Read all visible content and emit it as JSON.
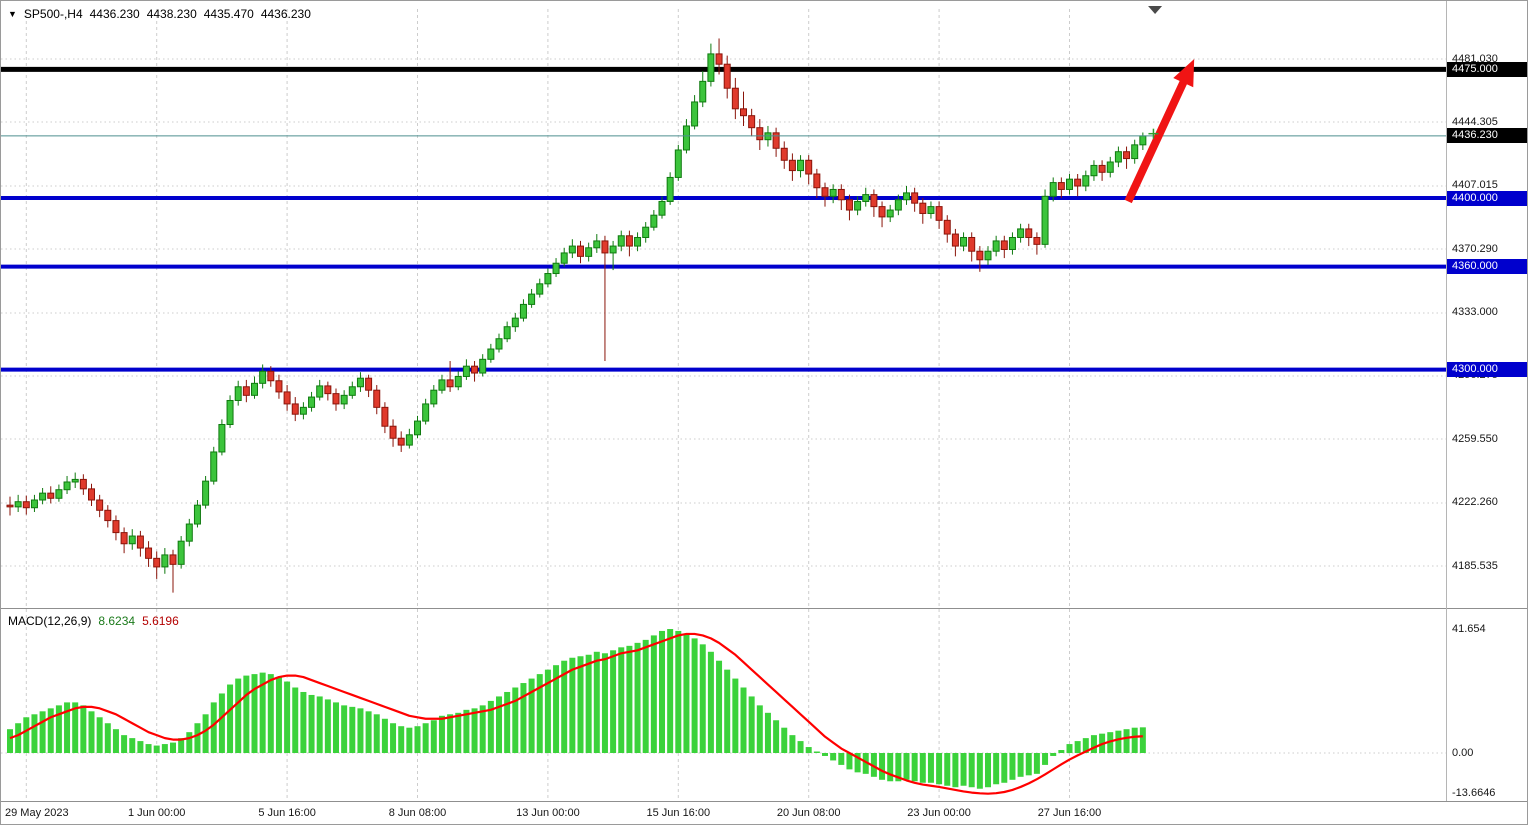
{
  "header": {
    "expand_icon": "▼",
    "symbol_period": "SP500-,H4",
    "open": "4436.230",
    "high": "4438.230",
    "low": "4435.470",
    "close": "4436.230"
  },
  "colors": {
    "bull_fill": "#3cc43c",
    "bull_stroke": "#0f7a0f",
    "bear_fill": "#e03a2c",
    "bear_stroke": "#8a140a",
    "hist_fill": "#3bd23b",
    "signal_line": "#ff0000",
    "grid": "#cdcdcd",
    "blue_level": "#0000cd",
    "black_level": "#000000",
    "current_price_line": "#4d8f8f",
    "arrow": "#f01414",
    "marker_green": "#2f9e2f"
  },
  "chart_data": {
    "type": "candlestick+macd",
    "main": {
      "y_axis_ticks": [
        {
          "v": 4481.03,
          "label": "4481.030"
        },
        {
          "v": 4444.305,
          "label": "4444.305"
        },
        {
          "v": 4407.015,
          "label": "4407.015"
        },
        {
          "v": 4370.29,
          "label": "4370.290"
        },
        {
          "v": 4333.0,
          "label": "4333.000"
        },
        {
          "v": 4296.275,
          "label": "4296.275"
        },
        {
          "v": 4259.55,
          "label": "4259.550"
        },
        {
          "v": 4222.26,
          "label": "4222.260"
        },
        {
          "v": 4185.535,
          "label": "4185.535"
        }
      ],
      "hlines": [
        {
          "price": 4475.0,
          "label": "4475.000",
          "color": "#000000",
          "badge_bg": "#000000",
          "width": 5
        },
        {
          "price": 4400.0,
          "label": "4400.000",
          "color": "#0000cd",
          "badge_bg": "#0000cd",
          "width": 4
        },
        {
          "price": 4360.0,
          "label": "4360.000",
          "color": "#0000cd",
          "badge_bg": "#0000cd",
          "width": 4
        },
        {
          "price": 4300.0,
          "label": "4300.000",
          "color": "#0000cd",
          "badge_bg": "#0000cd",
          "width": 4
        }
      ],
      "current_price": {
        "value": 4436.23,
        "label": "4436.230",
        "badge_bg": "#000000"
      },
      "arrow": {
        "from_index": 137.2,
        "from_price": 4398,
        "to_index": 145.3,
        "to_price": 4481,
        "color": "#f01414"
      },
      "shift_marker_index": 140.5,
      "price_cross_marker": {
        "index": 140.3,
        "price": 4437.5
      },
      "candles": [
        [
          4221,
          4226,
          4215,
          4220
        ],
        [
          4220,
          4227,
          4217,
          4223
        ],
        [
          4223,
          4226.5,
          4215.5,
          4219.5
        ],
        [
          4219.5,
          4227,
          4217,
          4224
        ],
        [
          4224,
          4231,
          4221.5,
          4228
        ],
        [
          4228,
          4232,
          4222,
          4225
        ],
        [
          4225,
          4233,
          4223,
          4230
        ],
        [
          4230,
          4238,
          4227.5,
          4234.5
        ],
        [
          4234.5,
          4240,
          4231,
          4236
        ],
        [
          4236,
          4239,
          4227,
          4230.5
        ],
        [
          4230.5,
          4233.5,
          4220.5,
          4224
        ],
        [
          4224,
          4227,
          4214,
          4218
        ],
        [
          4218,
          4221,
          4208,
          4212
        ],
        [
          4212,
          4215,
          4200.5,
          4205
        ],
        [
          4205,
          4208,
          4193,
          4198.5
        ],
        [
          4198.5,
          4207,
          4195,
          4203
        ],
        [
          4203,
          4206,
          4191,
          4196
        ],
        [
          4196,
          4200,
          4185,
          4190
        ],
        [
          4190,
          4194,
          4178,
          4185
        ],
        [
          4185,
          4196,
          4181,
          4192
        ],
        [
          4192,
          4195,
          4170,
          4186.5
        ],
        [
          4186.5,
          4203,
          4184,
          4200
        ],
        [
          4200,
          4213,
          4197,
          4210
        ],
        [
          4210,
          4224,
          4208,
          4221
        ],
        [
          4221,
          4238,
          4219,
          4235
        ],
        [
          4235,
          4255,
          4233,
          4252
        ],
        [
          4252,
          4271,
          4250,
          4268
        ],
        [
          4268,
          4285,
          4266,
          4282
        ],
        [
          4282,
          4293.5,
          4279,
          4290
        ],
        [
          4290,
          4294,
          4281,
          4285
        ],
        [
          4285,
          4296,
          4283,
          4292
        ],
        [
          4292,
          4303,
          4289,
          4299
        ],
        [
          4299,
          4302,
          4290,
          4293.5
        ],
        [
          4293.5,
          4297,
          4283,
          4287
        ],
        [
          4287,
          4291,
          4276,
          4280
        ],
        [
          4280,
          4284,
          4270,
          4274
        ],
        [
          4274,
          4281,
          4271,
          4278
        ],
        [
          4278,
          4287,
          4275.5,
          4284
        ],
        [
          4284,
          4294,
          4282,
          4290.5
        ],
        [
          4290.5,
          4293,
          4282,
          4286
        ],
        [
          4286,
          4289,
          4276,
          4280
        ],
        [
          4280,
          4288,
          4277,
          4285
        ],
        [
          4285,
          4293,
          4283,
          4290
        ],
        [
          4290,
          4298.5,
          4287,
          4295
        ],
        [
          4295,
          4297,
          4284,
          4288
        ],
        [
          4288,
          4291,
          4274,
          4278
        ],
        [
          4278,
          4281,
          4263,
          4267
        ],
        [
          4267,
          4271,
          4255,
          4260
        ],
        [
          4260,
          4264,
          4252,
          4256
        ],
        [
          4256,
          4265.5,
          4254,
          4262
        ],
        [
          4262,
          4273,
          4260,
          4270
        ],
        [
          4270,
          4283,
          4268,
          4280
        ],
        [
          4280,
          4291,
          4278,
          4288
        ],
        [
          4288,
          4297,
          4286,
          4294
        ],
        [
          4294,
          4305,
          4287,
          4290
        ],
        [
          4290,
          4299,
          4288,
          4296
        ],
        [
          4296,
          4306,
          4294,
          4302
        ],
        [
          4302,
          4305,
          4293,
          4298
        ],
        [
          4298,
          4309,
          4296,
          4306
        ],
        [
          4306,
          4315,
          4304,
          4312
        ],
        [
          4312,
          4321,
          4310,
          4318
        ],
        [
          4318,
          4328,
          4316,
          4325
        ],
        [
          4325,
          4333,
          4322,
          4330
        ],
        [
          4330,
          4341,
          4328,
          4338
        ],
        [
          4338,
          4347,
          4336,
          4344
        ],
        [
          4344,
          4353,
          4342,
          4350
        ],
        [
          4350,
          4359,
          4348,
          4356
        ],
        [
          4356,
          4365,
          4354,
          4362
        ],
        [
          4362,
          4371,
          4360,
          4368
        ],
        [
          4368,
          4376,
          4365,
          4372
        ],
        [
          4372,
          4375,
          4362,
          4366
        ],
        [
          4366,
          4374,
          4363,
          4371
        ],
        [
          4371,
          4379,
          4368,
          4375
        ],
        [
          4375,
          4378,
          4305,
          4368
        ],
        [
          4368,
          4375,
          4358,
          4372
        ],
        [
          4372,
          4381,
          4369,
          4378
        ],
        [
          4378,
          4381,
          4366,
          4372
        ],
        [
          4372,
          4380,
          4369,
          4377
        ],
        [
          4377,
          4386,
          4374,
          4383
        ],
        [
          4383,
          4393,
          4381,
          4390
        ],
        [
          4390,
          4401,
          4388,
          4398
        ],
        [
          4398,
          4415,
          4396,
          4412
        ],
        [
          4412,
          4431,
          4410,
          4428
        ],
        [
          4428,
          4446,
          4426,
          4442
        ],
        [
          4442,
          4460,
          4440,
          4456
        ],
        [
          4456,
          4474,
          4453,
          4468
        ],
        [
          4468,
          4490,
          4465,
          4484
        ],
        [
          4484,
          4493,
          4472,
          4478
        ],
        [
          4478,
          4483,
          4458,
          4464
        ],
        [
          4464,
          4470,
          4446,
          4452
        ],
        [
          4452,
          4462,
          4442,
          4448
        ],
        [
          4448,
          4452,
          4436,
          4441
        ],
        [
          4441,
          4446,
          4428,
          4434
        ],
        [
          4434,
          4442,
          4430,
          4438
        ],
        [
          4438,
          4441,
          4424,
          4429
        ],
        [
          4429,
          4433,
          4417,
          4422
        ],
        [
          4422,
          4426,
          4410,
          4416
        ],
        [
          4416,
          4425,
          4412,
          4422
        ],
        [
          4422,
          4425,
          4408,
          4414
        ],
        [
          4414,
          4417,
          4400,
          4406
        ],
        [
          4406,
          4409,
          4395,
          4401
        ],
        [
          4401,
          4408,
          4397,
          4405
        ],
        [
          4405,
          4408,
          4393,
          4399
        ],
        [
          4399,
          4402,
          4387,
          4393
        ],
        [
          4393,
          4401,
          4390,
          4398
        ],
        [
          4398,
          4406,
          4395,
          4402
        ],
        [
          4402,
          4405,
          4389,
          4395
        ],
        [
          4395,
          4398,
          4383,
          4389
        ],
        [
          4389,
          4396,
          4386,
          4393
        ],
        [
          4393,
          4402,
          4390,
          4399
        ],
        [
          4399,
          4407,
          4396,
          4403
        ],
        [
          4403,
          4406,
          4392,
          4397
        ],
        [
          4397,
          4400,
          4385,
          4391
        ],
        [
          4391,
          4398,
          4388,
          4395
        ],
        [
          4395,
          4398,
          4382,
          4387
        ],
        [
          4387,
          4390,
          4374,
          4379
        ],
        [
          4379,
          4382,
          4366,
          4372
        ],
        [
          4372,
          4380,
          4369,
          4377
        ],
        [
          4377,
          4380,
          4363,
          4369
        ],
        [
          4369,
          4372,
          4357,
          4364
        ],
        [
          4364,
          4372,
          4361,
          4369
        ],
        [
          4369,
          4378,
          4366,
          4375
        ],
        [
          4375,
          4378,
          4365,
          4370
        ],
        [
          4370,
          4380,
          4367,
          4377
        ],
        [
          4377,
          4385,
          4374,
          4382
        ],
        [
          4382,
          4385,
          4372,
          4377
        ],
        [
          4377,
          4380,
          4367,
          4373
        ],
        [
          4373,
          4405,
          4371,
          4401
        ],
        [
          4401,
          4412,
          4398,
          4409
        ],
        [
          4409,
          4412,
          4400,
          4405
        ],
        [
          4405,
          4414,
          4402,
          4411
        ],
        [
          4411,
          4414,
          4401,
          4407
        ],
        [
          4407,
          4416,
          4404,
          4413
        ],
        [
          4413,
          4422,
          4410,
          4419
        ],
        [
          4419,
          4422,
          4410,
          4415
        ],
        [
          4415,
          4424,
          4412,
          4421
        ],
        [
          4421,
          4430,
          4418,
          4427
        ],
        [
          4427,
          4430,
          4417,
          4423
        ],
        [
          4423,
          4434,
          4420,
          4431
        ],
        [
          4431,
          4438.2,
          4428,
          4436.2
        ]
      ]
    },
    "macd": {
      "title": "MACD(12,26,9)",
      "value_main": "8.6234",
      "value_signal": "5.6196",
      "y_ticks": [
        {
          "v": 41.654,
          "label": "41.654"
        },
        {
          "v": 0,
          "label": "0.00"
        },
        {
          "v": -13.6646,
          "label": "-13.6646"
        }
      ],
      "histogram": [
        8,
        10,
        12,
        13,
        14,
        15,
        16,
        17,
        17,
        16,
        14,
        12,
        10,
        8,
        6,
        5,
        4,
        3,
        2.5,
        3,
        3.5,
        5,
        7,
        10,
        13,
        17,
        20,
        23,
        25,
        26,
        26.5,
        27,
        26.5,
        25.5,
        24,
        22,
        20.5,
        19.5,
        19,
        18,
        17,
        16,
        15.5,
        15,
        14,
        13,
        11.5,
        10,
        9,
        8.5,
        9,
        10,
        11,
        12.5,
        13,
        13.5,
        14.5,
        15,
        16,
        17.5,
        19,
        20.5,
        22,
        23.5,
        25,
        26.5,
        28,
        29.5,
        31,
        32,
        32.5,
        33,
        34,
        33.5,
        34.5,
        35.5,
        36,
        37,
        38,
        39.5,
        41,
        41.654,
        41,
        40,
        38.5,
        36.5,
        34,
        31,
        28,
        25,
        22,
        19,
        16,
        13.5,
        11,
        8.5,
        6,
        4,
        2,
        0.5,
        -1,
        -2.5,
        -4,
        -5.5,
        -6.5,
        -7,
        -8,
        -9,
        -9.5,
        -9.5,
        -9,
        -9.5,
        -10,
        -10,
        -10.5,
        -11,
        -11.5,
        -11,
        -11.5,
        -12,
        -11.5,
        -10.5,
        -10,
        -9,
        -8,
        -7.5,
        -7,
        -4,
        -1,
        1,
        3,
        4,
        5,
        6,
        6.5,
        7,
        7.5,
        8,
        8.5,
        8.6234
      ],
      "signal": [
        5,
        6,
        7.5,
        9,
        10.5,
        12,
        13,
        14,
        15,
        15.5,
        15.5,
        15,
        14,
        13,
        11.5,
        10,
        8.5,
        7,
        6,
        5,
        4.5,
        4.5,
        5,
        6,
        7.5,
        9.5,
        12,
        14.5,
        17,
        19.5,
        21.5,
        23,
        24.5,
        25.5,
        26,
        26,
        25.5,
        24.5,
        23.5,
        22.5,
        21.5,
        20.5,
        19.5,
        18.5,
        17.5,
        16.5,
        15.5,
        14.5,
        13.5,
        12.5,
        12,
        11.5,
        11.5,
        11.5,
        12,
        12.5,
        13,
        13.5,
        14,
        14.5,
        15.5,
        16.5,
        17.5,
        19,
        20.5,
        22,
        23.5,
        25,
        26.5,
        28,
        29,
        30,
        31,
        31.5,
        32.5,
        33.5,
        34,
        34.5,
        35.5,
        36.5,
        37.5,
        38.5,
        39.5,
        40,
        40,
        39.5,
        38.5,
        37,
        35,
        33,
        30.5,
        28,
        25.5,
        23,
        20.5,
        18,
        15.5,
        13,
        10.5,
        8,
        5.5,
        3.5,
        1.5,
        0,
        -1.5,
        -3,
        -4.5,
        -6,
        -7.2,
        -8.2,
        -9.2,
        -10,
        -10.6,
        -11,
        -11.4,
        -11.9,
        -12.4,
        -12.9,
        -13.3,
        -13.55,
        -13.6646,
        -13.5,
        -13.1,
        -12.4,
        -11.4,
        -10.2,
        -8.8,
        -7.2,
        -5.5,
        -3.8,
        -2.2,
        -0.8,
        0.5,
        1.8,
        3,
        3.9,
        4.6,
        5.1,
        5.45,
        5.6196
      ]
    },
    "x_axis": {
      "labels": [
        {
          "index": 2,
          "text": "29 May 2023"
        },
        {
          "index": 18,
          "text": "1 Jun 00:00"
        },
        {
          "index": 34,
          "text": "5 Jun 16:00"
        },
        {
          "index": 50,
          "text": "8 Jun 08:00"
        },
        {
          "index": 66,
          "text": "13 Jun 00:00"
        },
        {
          "index": 82,
          "text": "15 Jun 16:00"
        },
        {
          "index": 98,
          "text": "20 Jun 08:00"
        },
        {
          "index": 114,
          "text": "23 Jun 00:00"
        },
        {
          "index": 130,
          "text": "27 Jun 16:00"
        }
      ]
    }
  }
}
